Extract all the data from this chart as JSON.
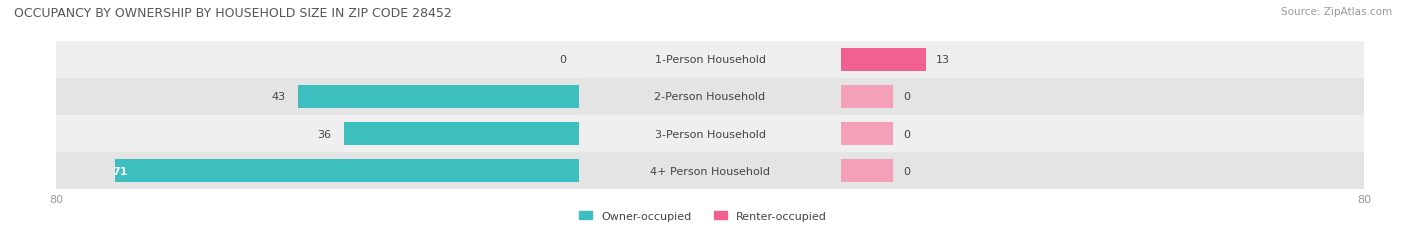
{
  "title": "OCCUPANCY BY OWNERSHIP BY HOUSEHOLD SIZE IN ZIP CODE 28452",
  "source": "Source: ZipAtlas.com",
  "categories": [
    "1-Person Household",
    "2-Person Household",
    "3-Person Household",
    "4+ Person Household"
  ],
  "owner_values": [
    0,
    43,
    36,
    71
  ],
  "renter_values": [
    13,
    0,
    0,
    0
  ],
  "owner_color": "#3DBFBF",
  "renter_color": "#F06090",
  "renter_color_light": "#F4A0B8",
  "row_bg_odd": "#EFEFEF",
  "row_bg_even": "#E4E4E4",
  "xmax": 80,
  "label_color": "#444444",
  "title_color": "#555555",
  "axis_label_color": "#999999",
  "legend_owner": "Owner-occupied",
  "legend_renter": "Renter-occupied"
}
